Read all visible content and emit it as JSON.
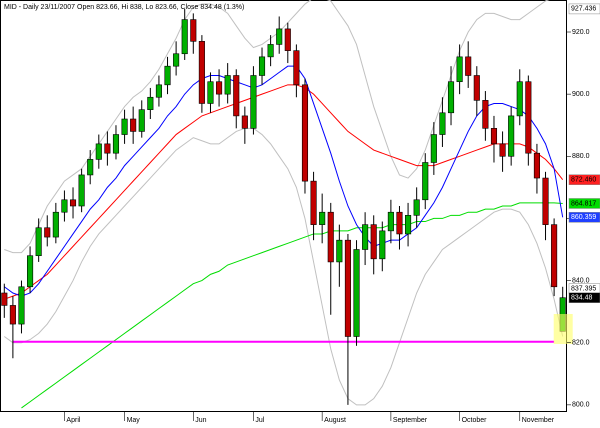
{
  "chart_data": {
    "type": "candlestick",
    "title": "MID - Daily 23/11/2007 Open 823.66, Hi 838, Lo 823.66, Close 834.48 (1.3%)",
    "categories": [
      null,
      null,
      null,
      null,
      null,
      null,
      null,
      "April",
      null,
      null,
      null,
      null,
      null,
      null,
      "May",
      null,
      null,
      null,
      null,
      null,
      null,
      null,
      "Jun",
      null,
      null,
      null,
      null,
      null,
      null,
      "Jul",
      null,
      null,
      null,
      null,
      null,
      null,
      null,
      "August",
      null,
      null,
      null,
      null,
      null,
      null,
      null,
      "September",
      null,
      null,
      null,
      null,
      null,
      null,
      null,
      "October",
      null,
      null,
      null,
      null,
      null,
      null,
      "November",
      null,
      null,
      null,
      null,
      null
    ],
    "open": [
      836,
      832,
      826,
      838,
      848,
      857,
      854,
      862,
      866,
      864,
      874,
      879,
      884,
      881,
      887,
      892,
      888,
      895,
      899,
      903,
      909,
      913,
      924,
      917,
      897,
      904,
      900,
      906,
      893,
      889,
      906,
      912,
      916,
      921,
      914,
      903,
      872,
      858,
      862,
      846,
      853,
      822,
      850,
      858,
      847,
      856,
      862,
      855,
      861,
      866,
      878,
      887,
      894,
      904,
      912,
      906,
      898,
      889,
      884,
      880,
      893,
      904,
      881,
      873,
      858,
      823.66
    ],
    "high": [
      839,
      835,
      840,
      851,
      860,
      861,
      865,
      869,
      870,
      876,
      882,
      887,
      888,
      890,
      895,
      896,
      898,
      902,
      906,
      912,
      917,
      927.4,
      926,
      919,
      907,
      908,
      910,
      908,
      896,
      909,
      915,
      919,
      925,
      923,
      916,
      905,
      875,
      868,
      865,
      858,
      855,
      853,
      862,
      861,
      859,
      866,
      864,
      865,
      870,
      881,
      891,
      899,
      909,
      916,
      917,
      909,
      901,
      893,
      888,
      896,
      908,
      906,
      884,
      875,
      860,
      838
    ],
    "low": [
      828,
      815,
      823,
      836,
      846,
      851,
      852,
      859,
      860,
      862,
      871,
      876,
      877,
      879,
      884,
      884,
      886,
      892,
      896,
      900,
      906,
      911,
      913,
      894,
      894,
      896,
      897,
      889,
      884,
      887,
      903,
      909,
      913,
      910,
      899,
      868,
      853,
      852,
      829,
      838,
      800,
      819,
      845,
      842,
      843,
      852,
      850,
      851,
      857,
      863,
      874,
      883,
      890,
      900,
      902,
      893,
      885,
      878,
      875,
      877,
      890,
      877,
      868,
      853,
      835,
      823.66
    ],
    "close": [
      832,
      826,
      838,
      848,
      857,
      854,
      862,
      866,
      864,
      874,
      879,
      884,
      881,
      887,
      892,
      888,
      895,
      899,
      903,
      909,
      913,
      924,
      917,
      897,
      904,
      900,
      906,
      893,
      889,
      906,
      912,
      916,
      921,
      914,
      903,
      872,
      858,
      862,
      846,
      853,
      822,
      850,
      858,
      847,
      856,
      862,
      855,
      861,
      866,
      878,
      887,
      894,
      904,
      912,
      906,
      898,
      889,
      884,
      880,
      893,
      904,
      881,
      873,
      858,
      838,
      834.48
    ],
    "up_color": "#00b000",
    "down_color": "#c00000",
    "series": [
      {
        "color": "#c0c0c0",
        "values": [
          850,
          849,
          849,
          852,
          858,
          864,
          868,
          872,
          874,
          876,
          880,
          884,
          888,
          892,
          896,
          899,
          901,
          904,
          908,
          913,
          918,
          924,
          928,
          929,
          929,
          928,
          926,
          922,
          918,
          915,
          916,
          918,
          920,
          923,
          926,
          929,
          931,
          931,
          930,
          926,
          922,
          916,
          906,
          896,
          888,
          880,
          874,
          873,
          876,
          882,
          890,
          898,
          906,
          914,
          920,
          924,
          926,
          926,
          925,
          924,
          924,
          926,
          928,
          930,
          931,
          931
        ]
      },
      {
        "color": "#c0c0c0",
        "values": [
          822,
          820,
          820,
          821,
          823,
          826,
          830,
          835,
          840,
          846,
          851,
          855,
          858,
          861,
          864,
          867,
          870,
          873,
          876,
          879,
          882,
          884,
          886,
          885,
          884,
          884,
          886,
          888,
          889,
          889,
          887,
          884,
          880,
          876,
          870,
          860,
          846,
          832,
          818,
          808,
          802,
          800,
          800,
          802,
          806,
          812,
          820,
          828,
          836,
          842,
          846,
          850,
          852,
          854,
          856,
          858,
          860,
          862,
          863,
          863,
          862,
          858,
          852,
          844,
          834,
          822
        ]
      },
      {
        "color": "#00dd00",
        "values": [
          null,
          null,
          799,
          801,
          803,
          805,
          807,
          809,
          811,
          813,
          815,
          817,
          819,
          821,
          823,
          825,
          827,
          829,
          831,
          833,
          835,
          837,
          839,
          840,
          842,
          843,
          845,
          846,
          847,
          848,
          849,
          850,
          851,
          852,
          853,
          854,
          855,
          855,
          856,
          856,
          856,
          857,
          857,
          857,
          857,
          858,
          858,
          858,
          859,
          859,
          860,
          860,
          861,
          861,
          862,
          862,
          863,
          863,
          864,
          864,
          865,
          865,
          865,
          865,
          865,
          864.817
        ]
      },
      {
        "color": "#ff0000",
        "values": [
          834,
          835,
          836,
          838,
          840,
          842,
          845,
          848,
          851,
          854,
          857,
          860,
          863,
          866,
          869,
          872,
          875,
          878,
          881,
          884,
          887,
          889,
          891,
          893,
          894,
          895,
          896,
          897,
          898,
          899,
          900,
          901,
          902,
          903,
          903,
          902,
          900,
          897,
          894,
          891,
          888,
          886,
          884,
          882,
          881,
          880,
          879,
          878,
          877,
          877,
          877,
          878,
          879,
          880,
          881,
          882,
          883,
          884,
          884,
          884,
          884,
          883,
          881,
          879,
          876,
          872.46
        ]
      },
      {
        "color": "#0000ff",
        "values": [
          838,
          836,
          835,
          836,
          839,
          843,
          847,
          851,
          855,
          859,
          863,
          866,
          870,
          873,
          877,
          880,
          883,
          886,
          889,
          893,
          896,
          900,
          903,
          905,
          906,
          906,
          905,
          904,
          903,
          902,
          903,
          905,
          907,
          909,
          909,
          905,
          897,
          889,
          881,
          872,
          864,
          858,
          854,
          851,
          852,
          853,
          853,
          855,
          857,
          861,
          865,
          870,
          876,
          882,
          888,
          893,
          896,
          897,
          897,
          896,
          895,
          893,
          889,
          884,
          876,
          860.359
        ]
      }
    ],
    "hline": {
      "value": 820.3,
      "color": "#ff00ff"
    },
    "ylim": [
      797.7,
      930.3
    ],
    "yticks": [
      {
        "value": 800,
        "label": "800.0"
      },
      {
        "value": 820,
        "label": "820.0"
      },
      {
        "value": 840,
        "label": "840.0"
      },
      {
        "value": 860,
        "label": "860.0"
      },
      {
        "value": 880,
        "label": "880.0"
      },
      {
        "value": 900,
        "label": "900.0"
      },
      {
        "value": 920,
        "label": "920.0"
      }
    ],
    "price_tags": [
      {
        "value": 927.436,
        "color": "#ffffff",
        "text_color": "#000000"
      },
      {
        "value": 872.46,
        "label": "872.460",
        "color": "#ff2020",
        "text_color": "#000000"
      },
      {
        "value": 864.817,
        "color": "#00dd00",
        "text_color": "#000000"
      },
      {
        "value": 860.359,
        "color": "#2040ff",
        "text_color": "#ffffff"
      },
      {
        "value": 837.395,
        "color": "#ffffff",
        "text_color": "#000000"
      },
      {
        "value": 834.48,
        "color": "#000000",
        "text_color": "#ffffff"
      }
    ]
  }
}
